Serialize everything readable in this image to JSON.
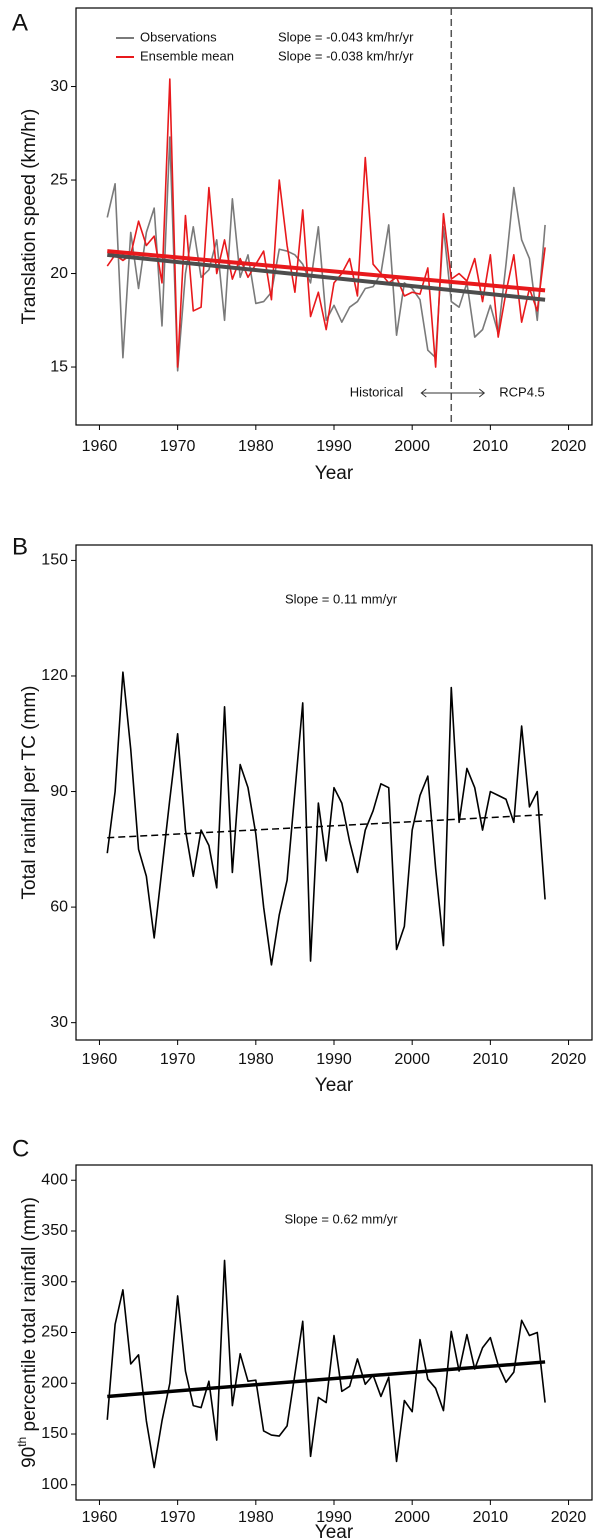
{
  "chart_data": [
    {
      "type": "line",
      "panel_label": "A",
      "x_label": "Year",
      "y_label": "Translation speed (km/hr)",
      "x": [
        1961,
        1962,
        1963,
        1964,
        1965,
        1966,
        1967,
        1968,
        1969,
        1970,
        1971,
        1972,
        1973,
        1974,
        1975,
        1976,
        1977,
        1978,
        1979,
        1980,
        1981,
        1982,
        1983,
        1984,
        1985,
        1986,
        1987,
        1988,
        1989,
        1990,
        1991,
        1992,
        1993,
        1994,
        1995,
        1996,
        1997,
        1998,
        1999,
        2000,
        2001,
        2002,
        2003,
        2004,
        2005,
        2006,
        2007,
        2008,
        2009,
        2010,
        2011,
        2012,
        2013,
        2014,
        2015,
        2016,
        2017
      ],
      "xlim": [
        1957,
        2023
      ],
      "xticks": [
        1960,
        1970,
        1980,
        1990,
        2000,
        2010,
        2020
      ],
      "ylim": [
        11.9,
        34.2
      ],
      "yticks": [
        15,
        20,
        25,
        30
      ],
      "series": [
        {
          "name": "Observations",
          "color": "#7a7a7a",
          "slope_label": "Slope = -0.043 km/hr/yr",
          "values": [
            23.0,
            24.8,
            15.5,
            22.2,
            19.2,
            22.2,
            23.5,
            17.2,
            27.3,
            14.8,
            20.0,
            22.5,
            19.8,
            20.2,
            21.8,
            17.5,
            24.0,
            19.8,
            21.0,
            18.4,
            18.5,
            19.0,
            21.3,
            21.2,
            21.0,
            20.5,
            19.5,
            22.5,
            17.5,
            18.3,
            17.4,
            18.2,
            18.5,
            19.2,
            19.3,
            20.0,
            22.6,
            16.7,
            19.5,
            19.2,
            18.6,
            15.9,
            15.5,
            22.5,
            18.5,
            18.2,
            19.5,
            16.6,
            17.0,
            18.3,
            16.8,
            20.5,
            24.6,
            21.8,
            20.8,
            17.5,
            22.6
          ],
          "trend": {
            "x": [
              1961,
              2017
            ],
            "values": [
              21.0,
              18.6
            ],
            "color": "#4d4d4d"
          }
        },
        {
          "name": "Ensemble mean",
          "color": "#e8191c",
          "slope_label": "Slope = -0.038 km/hr/yr",
          "values": [
            20.4,
            21.0,
            20.7,
            21.0,
            22.8,
            21.5,
            22.0,
            19.5,
            30.4,
            15.0,
            23.1,
            18.0,
            18.2,
            24.6,
            20.0,
            21.8,
            19.7,
            20.8,
            19.8,
            20.5,
            21.2,
            18.6,
            25.0,
            21.5,
            19.0,
            23.4,
            17.7,
            19.0,
            17.0,
            19.5,
            20.0,
            20.8,
            18.8,
            26.2,
            20.5,
            20.0,
            19.5,
            19.8,
            18.8,
            19.0,
            18.9,
            20.3,
            15.0,
            23.2,
            19.7,
            20.0,
            19.6,
            20.8,
            18.5,
            21.0,
            16.6,
            19.0,
            21.0,
            17.4,
            19.2,
            18.0,
            21.4
          ],
          "trend": {
            "x": [
              1961,
              2017
            ],
            "values": [
              21.2,
              19.1
            ],
            "color": "#e8191c"
          }
        }
      ],
      "vline": 2005,
      "left_annotation": "Historical",
      "right_annotation": "RCP4.5"
    },
    {
      "type": "line",
      "panel_label": "B",
      "x_label": "Year",
      "y_label": "Total rainfall per TC (mm)",
      "x": [
        1961,
        1962,
        1963,
        1964,
        1965,
        1966,
        1967,
        1968,
        1969,
        1970,
        1971,
        1972,
        1973,
        1974,
        1975,
        1976,
        1977,
        1978,
        1979,
        1980,
        1981,
        1982,
        1983,
        1984,
        1985,
        1986,
        1987,
        1988,
        1989,
        1990,
        1991,
        1992,
        1993,
        1994,
        1995,
        1996,
        1997,
        1998,
        1999,
        2000,
        2001,
        2002,
        2003,
        2004,
        2005,
        2006,
        2007,
        2008,
        2009,
        2010,
        2011,
        2012,
        2013,
        2014,
        2015,
        2016,
        2017
      ],
      "xlim": [
        1957,
        2023
      ],
      "xticks": [
        1960,
        1970,
        1980,
        1990,
        2000,
        2010,
        2020
      ],
      "ylim": [
        25.5,
        154
      ],
      "yticks": [
        30,
        60,
        90,
        120,
        150
      ],
      "annotation": "Slope = 0.11 mm/yr",
      "series": [
        {
          "color": "#000000",
          "values": [
            74,
            90,
            121,
            101,
            75,
            68,
            52,
            70,
            88,
            105,
            80,
            68,
            80,
            76,
            65,
            112,
            69,
            97,
            91,
            79,
            60,
            45,
            58,
            67,
            90,
            113,
            46,
            87,
            72,
            91,
            87,
            77,
            69,
            80,
            85,
            92,
            91,
            49,
            55,
            80,
            89,
            94,
            70,
            50,
            117,
            82,
            96,
            91,
            80,
            90,
            89,
            88,
            82,
            107,
            86,
            90,
            62
          ],
          "trend": {
            "x": [
              1961,
              2017
            ],
            "values": [
              78,
              84
            ],
            "color": "#000000",
            "dashed": true
          }
        }
      ]
    },
    {
      "type": "line",
      "panel_label": "C",
      "x_label": "Year",
      "y_label": [
        "90",
        "th",
        " percentile total rainfall (mm)"
      ],
      "x": [
        1961,
        1962,
        1963,
        1964,
        1965,
        1966,
        1967,
        1968,
        1969,
        1970,
        1971,
        1972,
        1973,
        1974,
        1975,
        1976,
        1977,
        1978,
        1979,
        1980,
        1981,
        1982,
        1983,
        1984,
        1985,
        1986,
        1987,
        1988,
        1989,
        1990,
        1991,
        1992,
        1993,
        1994,
        1995,
        1996,
        1997,
        1998,
        1999,
        2000,
        2001,
        2002,
        2003,
        2004,
        2005,
        2006,
        2007,
        2008,
        2009,
        2010,
        2011,
        2012,
        2013,
        2014,
        2015,
        2016,
        2017
      ],
      "xlim": [
        1957,
        2023
      ],
      "xticks": [
        1960,
        1970,
        1980,
        1990,
        2000,
        2010,
        2020
      ],
      "ylim": [
        85,
        415
      ],
      "yticks": [
        100,
        150,
        200,
        250,
        300,
        350,
        400
      ],
      "annotation": "Slope = 0.62 mm/yr",
      "series": [
        {
          "color": "#000000",
          "values": [
            164,
            258,
            292,
            219,
            228,
            163,
            117,
            163,
            200,
            286,
            212,
            178,
            176,
            202,
            144,
            321,
            178,
            229,
            202,
            203,
            153,
            149,
            148,
            158,
            209,
            261,
            128,
            186,
            181,
            247,
            192,
            197,
            224,
            199,
            208,
            187,
            206,
            123,
            183,
            172,
            243,
            204,
            195,
            173,
            251,
            212,
            248,
            214,
            235,
            245,
            218,
            201,
            211,
            262,
            247,
            250,
            181
          ],
          "trend": {
            "x": [
              1961,
              2017
            ],
            "values": [
              187,
              221
            ],
            "color": "#000000",
            "width": 3.5
          }
        }
      ]
    }
  ]
}
